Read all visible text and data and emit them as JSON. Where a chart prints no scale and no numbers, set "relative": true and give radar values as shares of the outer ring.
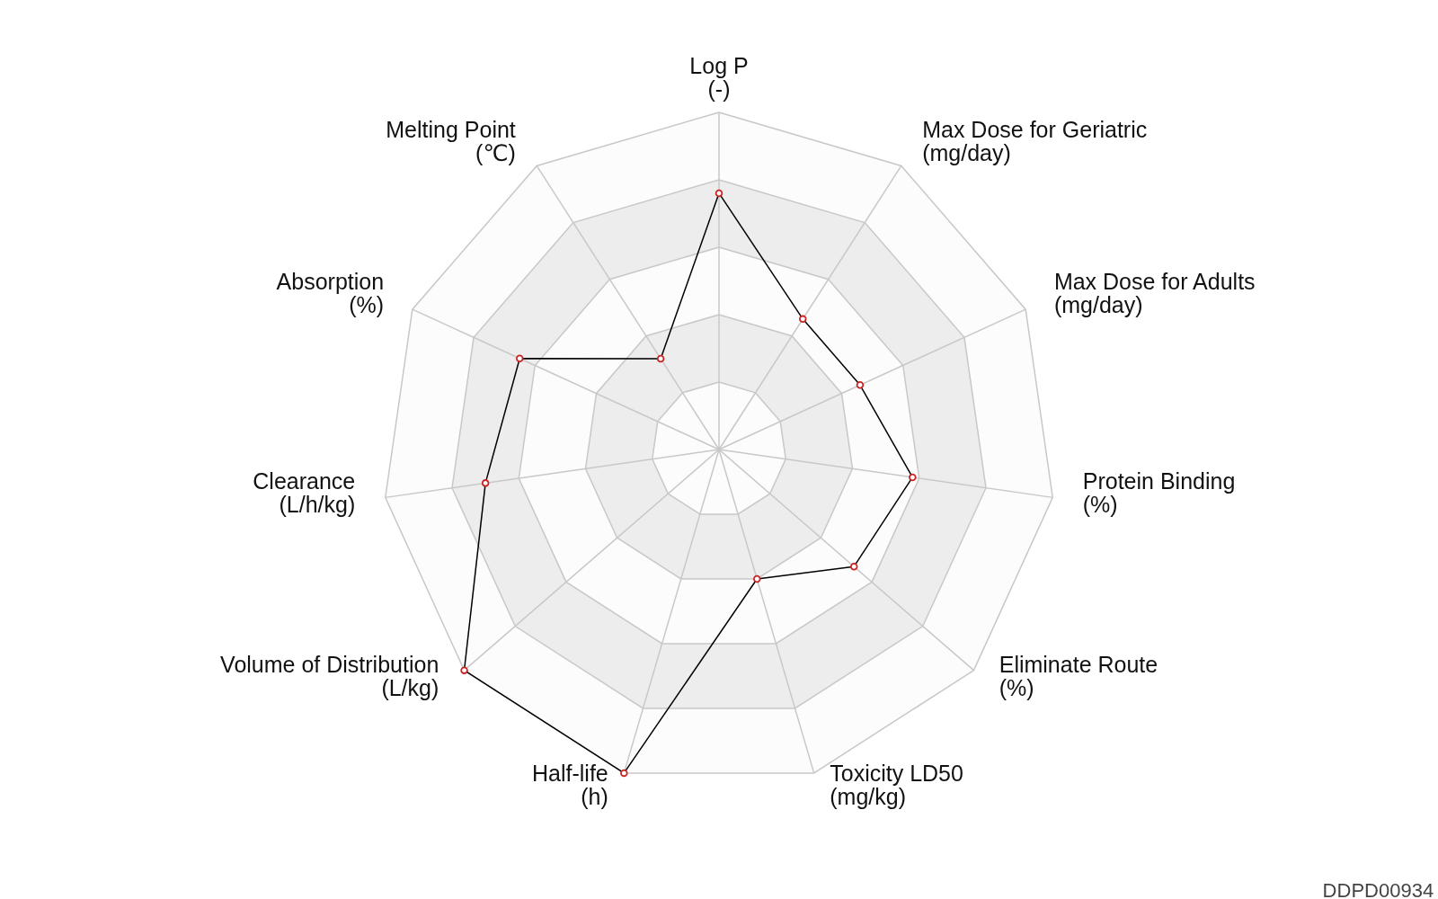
{
  "chart_data": {
    "type": "radar",
    "relative": true,
    "grid": true,
    "marker": "circle",
    "categories": [
      "Log P\n(-)",
      "Max Dose for Geriatric\n(mg/day)",
      "Max Dose for Adults\n(mg/day)",
      "Protein Binding\n(%)",
      "Eliminate Route\n(%)",
      "Toxicity LD50\n(mg/kg)",
      "Half-life\n(h)",
      "Volume of Distribution\n(L/kg)",
      "Clearance\n(L/h/kg)",
      "Absorption\n(%)",
      "Melting Point\n(℃)"
    ],
    "series": [
      {
        "color": "#000000",
        "values": [
          0.76,
          0.46,
          0.46,
          0.58,
          0.53,
          0.4,
          1.0,
          1.0,
          0.7,
          0.65,
          0.32
        ]
      }
    ],
    "annotations": [
      "DDPD00934"
    ]
  }
}
